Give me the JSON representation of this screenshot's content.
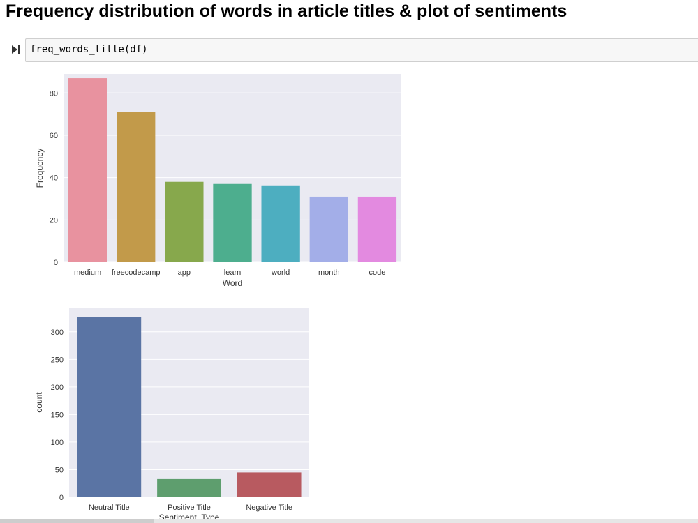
{
  "notebook": {
    "heading": "Frequency distribution of words in article titles & plot of sentiments",
    "cell_code": "freq_words_title(df)"
  },
  "chart_data": [
    {
      "type": "bar",
      "title": "",
      "xlabel": "Word",
      "ylabel": "Frequency",
      "categories": [
        "medium",
        "freecodecamp",
        "app",
        "learn",
        "world",
        "month",
        "code"
      ],
      "values": [
        87,
        71,
        38,
        37,
        36,
        31,
        31
      ],
      "colors": [
        "#E8929F",
        "#C29A4A",
        "#87A84C",
        "#4DAE8E",
        "#4DAEC0",
        "#A3AEE8",
        "#E38AE0"
      ],
      "ylim": [
        0,
        89
      ],
      "yticks": [
        0,
        20,
        40,
        60,
        80
      ],
      "grid": true
    },
    {
      "type": "bar",
      "title": "",
      "xlabel": "Sentiment_Type",
      "ylabel": "count",
      "categories": [
        "Neutral Title",
        "Positive Title",
        "Negative Title"
      ],
      "values": [
        327,
        33,
        45
      ],
      "colors": [
        "#5A74A4",
        "#5E9E6E",
        "#B85A60"
      ],
      "ylim": [
        0,
        344
      ],
      "yticks": [
        0,
        50,
        100,
        150,
        200,
        250,
        300
      ],
      "grid": true
    }
  ]
}
